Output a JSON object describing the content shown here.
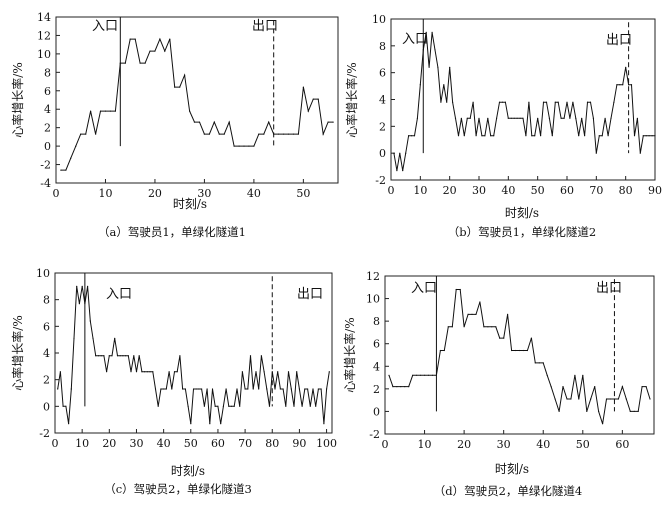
{
  "chart_data": [
    {
      "type": "line",
      "caption": "（a）驾驶员1，单绿化隧道1",
      "xlabel": "时刻/s",
      "ylabel": "心率增长率/%",
      "xlim": [
        0,
        57
      ],
      "ylim": [
        -4,
        14
      ],
      "xticks": [
        "0",
        "10",
        "20",
        "30",
        "40",
        "50"
      ],
      "yticks": [
        "-4",
        "-2",
        "0",
        "2",
        "4",
        "6",
        "8",
        "10",
        "12",
        "14"
      ],
      "annotations": [
        {
          "text": "入口",
          "x": 13,
          "line_style": "solid"
        },
        {
          "text": "出口",
          "x": 44,
          "line_style": "dashed"
        }
      ],
      "series": [
        {
          "x": [
            1,
            2,
            3,
            4,
            5,
            6,
            7,
            8,
            9,
            10,
            11,
            12,
            13,
            14,
            15,
            16,
            17,
            18,
            19,
            20,
            21,
            22,
            23,
            24,
            25,
            26,
            27,
            28,
            29,
            30,
            31,
            32,
            33,
            34,
            35,
            36,
            37,
            38,
            39,
            40,
            41,
            42,
            43,
            44,
            45,
            46,
            47,
            48,
            49,
            50,
            51,
            52,
            53,
            54,
            55,
            56
          ],
          "values": [
            -2.6,
            -2.6,
            -1.3,
            0,
            1.3,
            1.3,
            3.8,
            1.3,
            3.8,
            3.8,
            3.8,
            3.8,
            9,
            9,
            11.6,
            11.6,
            9,
            9,
            10.3,
            10.3,
            11.6,
            10.3,
            11.6,
            6.4,
            6.4,
            7.7,
            3.8,
            2.6,
            2.6,
            1.3,
            1.3,
            2.6,
            1.3,
            1.3,
            2.6,
            0,
            0,
            0,
            0,
            0,
            1.3,
            1.3,
            2.6,
            1.3,
            1.3,
            1.3,
            1.3,
            1.3,
            1.3,
            6.4,
            3.8,
            5.1,
            5.1,
            1.3,
            2.6,
            2.6
          ]
        }
      ]
    },
    {
      "type": "line",
      "caption": "（b）驾驶员1，单绿化隧道2",
      "xlabel": "时刻/s",
      "ylabel": "心率增长率/%",
      "xlim": [
        0,
        90
      ],
      "ylim": [
        -2,
        10
      ],
      "xticks": [
        "0",
        "10",
        "20",
        "30",
        "40",
        "50",
        "60",
        "70",
        "80",
        "90"
      ],
      "yticks": [
        "-2",
        "0",
        "2",
        "4",
        "6",
        "8",
        "10"
      ],
      "annotations": [
        {
          "text": "入口",
          "x": 11,
          "line_style": "solid"
        },
        {
          "text": "出口",
          "x": 81,
          "line_style": "dashed"
        }
      ],
      "series": [
        {
          "x": [
            1,
            2,
            3,
            4,
            5,
            6,
            7,
            8,
            9,
            10,
            11,
            12,
            13,
            14,
            15,
            16,
            17,
            18,
            19,
            20,
            21,
            22,
            23,
            24,
            25,
            26,
            27,
            28,
            29,
            30,
            31,
            32,
            33,
            34,
            35,
            36,
            37,
            38,
            39,
            40,
            41,
            42,
            43,
            44,
            45,
            46,
            47,
            48,
            49,
            50,
            51,
            52,
            53,
            54,
            55,
            56,
            57,
            58,
            59,
            60,
            61,
            62,
            63,
            64,
            65,
            66,
            67,
            68,
            69,
            70,
            71,
            72,
            73,
            74,
            75,
            76,
            77,
            78,
            79,
            80,
            81,
            82,
            83,
            84,
            85,
            86,
            87,
            88,
            89,
            90
          ],
          "values": [
            0,
            -1.3,
            0,
            -1.3,
            0,
            1.3,
            1.3,
            1.3,
            2.6,
            5.1,
            7.7,
            9,
            6.4,
            9,
            7.7,
            6.4,
            3.8,
            5.1,
            3.8,
            6.4,
            3.8,
            2.6,
            1.3,
            2.6,
            1.3,
            2.6,
            2.6,
            3.8,
            1.3,
            2.6,
            1.3,
            1.3,
            2.6,
            1.3,
            1.3,
            2.6,
            3.8,
            3.8,
            3.8,
            2.6,
            2.6,
            2.6,
            2.6,
            2.6,
            2.6,
            1.3,
            3.8,
            1.3,
            1.3,
            2.6,
            1.3,
            3.8,
            3.8,
            2.6,
            1.3,
            3.8,
            3.8,
            2.6,
            2.6,
            3.8,
            2.6,
            3.8,
            2.6,
            1.3,
            2.6,
            1.3,
            3.8,
            3.8,
            2.6,
            0,
            1.3,
            1.3,
            2.6,
            1.3,
            2.6,
            3.8,
            5.1,
            5.1,
            5.1,
            6.4,
            5.1,
            5.1,
            1.3,
            2.6,
            0,
            1.3,
            1.3,
            1.3,
            1.3,
            1.3
          ]
        }
      ]
    },
    {
      "type": "line",
      "caption": "（c）驾驶员2，单绿化隧道3",
      "xlabel": "时刻/s",
      "ylabel": "心率增长率/%",
      "xlim": [
        0,
        102
      ],
      "ylim": [
        -2,
        10
      ],
      "xticks": [
        "0",
        "10",
        "20",
        "30",
        "40",
        "50",
        "60",
        "70",
        "80",
        "90",
        "100"
      ],
      "yticks": [
        "-2",
        "0",
        "2",
        "4",
        "6",
        "8",
        "10"
      ],
      "annotations": [
        {
          "text": "入口",
          "x": 11,
          "line_style": "solid"
        },
        {
          "text": "出口",
          "x": 80,
          "line_style": "dashed"
        }
      ],
      "series": [
        {
          "x": [
            1,
            2,
            3,
            4,
            5,
            6,
            7,
            8,
            9,
            10,
            11,
            12,
            13,
            14,
            15,
            16,
            17,
            18,
            19,
            20,
            21,
            22,
            23,
            24,
            25,
            26,
            27,
            28,
            29,
            30,
            31,
            32,
            33,
            34,
            35,
            36,
            37,
            38,
            39,
            40,
            41,
            42,
            43,
            44,
            45,
            46,
            47,
            48,
            49,
            50,
            51,
            52,
            53,
            54,
            55,
            56,
            57,
            58,
            59,
            60,
            61,
            62,
            63,
            64,
            65,
            66,
            67,
            68,
            69,
            70,
            71,
            72,
            73,
            74,
            75,
            76,
            77,
            78,
            79,
            80,
            81,
            82,
            83,
            84,
            85,
            86,
            87,
            88,
            89,
            90,
            91,
            92,
            93,
            94,
            95,
            96,
            97,
            98,
            99,
            100,
            101
          ],
          "values": [
            1.3,
            2.6,
            0,
            0,
            -1.3,
            1.3,
            5.1,
            9,
            7.7,
            9,
            7.7,
            9,
            6.4,
            5.1,
            3.8,
            3.8,
            3.8,
            3.8,
            2.6,
            3.8,
            3.8,
            5.1,
            3.8,
            3.8,
            3.8,
            3.8,
            3.8,
            2.6,
            3.8,
            2.6,
            3.8,
            2.6,
            2.6,
            2.6,
            2.6,
            2.6,
            1.3,
            0,
            1.3,
            1.3,
            1.3,
            2.6,
            1.3,
            2.6,
            2.6,
            3.8,
            1.3,
            1.3,
            0,
            -1.3,
            1.3,
            1.3,
            1.3,
            1.3,
            0,
            1.3,
            -1.3,
            1.3,
            0,
            0,
            -1.3,
            0,
            1.3,
            0,
            0,
            0,
            1.3,
            0,
            2.6,
            1.3,
            1.3,
            3.8,
            1.3,
            2.6,
            1.3,
            3.8,
            2.6,
            1.3,
            0,
            2.6,
            1.3,
            2.6,
            1.3,
            1.3,
            0,
            2.6,
            1.3,
            0,
            2.6,
            1.3,
            0,
            1.3,
            1.3,
            0,
            1.3,
            0,
            1.3,
            1.3,
            -1.3,
            1.3,
            2.6
          ]
        }
      ]
    },
    {
      "type": "line",
      "caption": "（d）驾驶员2，单绿化隧道4",
      "xlabel": "时刻/s",
      "ylabel": "心率增长率/%",
      "xlim": [
        0,
        68
      ],
      "ylim": [
        -2,
        12
      ],
      "xticks": [
        "0",
        "10",
        "20",
        "30",
        "40",
        "50",
        "60"
      ],
      "yticks": [
        "-2",
        "0",
        "2",
        "4",
        "6",
        "8",
        "10",
        "12"
      ],
      "annotations": [
        {
          "text": "入口",
          "x": 13,
          "line_style": "solid"
        },
        {
          "text": "出口",
          "x": 58,
          "line_style": "dashed"
        }
      ],
      "series": [
        {
          "x": [
            1,
            2,
            3,
            4,
            5,
            6,
            7,
            8,
            9,
            10,
            11,
            12,
            13,
            14,
            15,
            16,
            17,
            18,
            19,
            20,
            21,
            22,
            23,
            24,
            25,
            26,
            27,
            28,
            29,
            30,
            31,
            32,
            33,
            34,
            35,
            36,
            37,
            38,
            39,
            40,
            41,
            42,
            43,
            44,
            45,
            46,
            47,
            48,
            49,
            50,
            51,
            52,
            53,
            54,
            55,
            56,
            57,
            58,
            59,
            60,
            61,
            62,
            63,
            64,
            65,
            66,
            67
          ],
          "values": [
            3.2,
            2.2,
            2.2,
            2.2,
            2.2,
            2.2,
            3.2,
            3.2,
            3.2,
            3.2,
            3.2,
            3.2,
            3.2,
            5.4,
            5.4,
            7.5,
            7.5,
            10.8,
            10.8,
            7.5,
            8.6,
            8.6,
            8.6,
            9.7,
            7.5,
            7.5,
            7.5,
            7.5,
            6.5,
            6.5,
            8.6,
            5.4,
            5.4,
            5.4,
            5.4,
            5.4,
            6.5,
            4.3,
            4.3,
            4.3,
            3.2,
            2.2,
            1.1,
            0,
            2.2,
            1.1,
            1.1,
            3.2,
            1.1,
            3.2,
            0,
            1.1,
            2.2,
            0,
            -1.1,
            1.1,
            1.1,
            1.1,
            1.1,
            2.2,
            1.1,
            0,
            0,
            0,
            2.2,
            2.2,
            1.1
          ]
        }
      ]
    }
  ]
}
